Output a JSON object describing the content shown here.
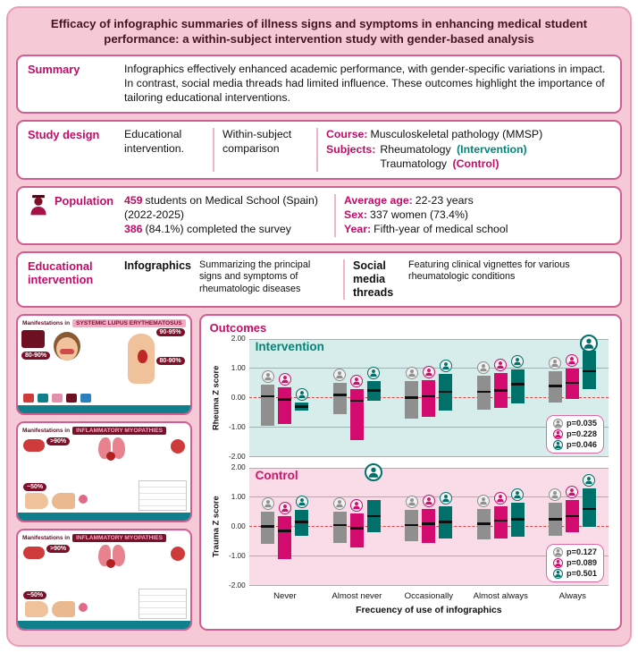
{
  "title": "Efficacy of infographic summaries of illness signs and symptoms in enhancing medical student performance: a within-subject intervention study with gender-based analysis",
  "summary": {
    "label": "Summary",
    "text": "Infographics effectively enhanced academic performance, with gender-specific variations in impact. In contrast, social media threads had limited influence. These outcomes highlight the importance of tailoring educational interventions."
  },
  "study_design": {
    "label": "Study design",
    "col1": "Educational intervention.",
    "col2": "Within-subject comparison",
    "course_label": "Course:",
    "course_value": "Musculoskeletal pathology (MMSP)",
    "subjects_label": "Subjects:",
    "subject1": "Rheumatology",
    "subject1_tag": "(Intervention)",
    "subject2": "Traumatology",
    "subject2_tag": "(Control)"
  },
  "population": {
    "label": "Population",
    "icon": "student-icon",
    "line1_num": "459",
    "line1_rest": "students on Medical School (Spain) (2022-2025)",
    "line2_num": "386",
    "line2_rest": "(84.1%) completed the survey",
    "rows": [
      {
        "label": "Average age:",
        "value": "22-23 years"
      },
      {
        "label": "Sex:",
        "value": "337 women (73.4%)"
      },
      {
        "label": "Year:",
        "value": "Fifth-year of medical school"
      }
    ]
  },
  "education": {
    "label": "Educational intervention",
    "item1_title": "Infographics",
    "item1_desc": "Summarizing the principal signs and symptoms of rheumatologic diseases",
    "item2_title": "Social media threads",
    "item2_desc": "Featuring clinical vignettes for various rheumatologic conditions"
  },
  "thumbnails": [
    {
      "kind": "lupus",
      "intro": "Manifestations in",
      "title": "SYSTEMIC LUPUS ERYTHEMATOSUS",
      "badges": [
        "80-90%",
        "90-95%",
        "80-90%"
      ]
    },
    {
      "kind": "myopathies",
      "intro": "Manifestations in",
      "title": "INFLAMMATORY MYOPATHIES",
      "badges": [
        ">90%",
        "~50%"
      ]
    },
    {
      "kind": "myopathies",
      "intro": "Manifestations in",
      "title": "INFLAMMATORY MYOPATHIES",
      "badges": [
        ">90%",
        "~50%"
      ]
    }
  ],
  "outcomes": {
    "label": "Outcomes",
    "x_title": "Frecuency of use of infographics"
  },
  "colors": {
    "magenta": "#c30b67",
    "teal": "#00857b",
    "gray_series": "#8f8f8f",
    "panel_teal": "#d6edeb",
    "panel_pink": "#f9dce8",
    "zero_line": "#e24444",
    "frame_pink": "#f5c9d6",
    "card_border": "#cf5e92"
  },
  "chart_data": [
    {
      "type": "boxplot",
      "title": "Intervention",
      "title_color": "#00857b",
      "panel_bg": "#d6edeb",
      "ylabel": "Rheuma Z score",
      "ylim": [
        -2.0,
        2.0
      ],
      "yticks": [
        "2.00",
        "1.00",
        "0.00",
        "-1.00",
        "-2.00"
      ],
      "categories": [
        "Never",
        "Almost never",
        "Occasionally",
        "Almost always",
        "Always"
      ],
      "series": [
        {
          "icon": "person-all-icon",
          "color": "#8f8f8f",
          "p_label": "p=0.035",
          "boxes": [
            {
              "q1": -0.95,
              "median": 0.05,
              "q3": 0.45
            },
            {
              "q1": -0.55,
              "median": 0.1,
              "q3": 0.5
            },
            {
              "q1": -0.7,
              "median": 0.0,
              "q3": 0.55
            },
            {
              "q1": -0.4,
              "median": 0.2,
              "q3": 0.75
            },
            {
              "q1": -0.15,
              "median": 0.4,
              "q3": 0.9
            }
          ]
        },
        {
          "icon": "person-female-icon",
          "color": "#d40b6e",
          "p_label": "p=0.228",
          "boxes": [
            {
              "q1": -0.9,
              "median": -0.05,
              "q3": 0.35
            },
            {
              "q1": -1.45,
              "median": -0.1,
              "q3": 0.3
            },
            {
              "q1": -0.65,
              "median": 0.05,
              "q3": 0.6
            },
            {
              "q1": -0.35,
              "median": 0.25,
              "q3": 0.85
            },
            {
              "q1": -0.05,
              "median": 0.5,
              "q3": 1.0
            }
          ]
        },
        {
          "icon": "person-male-icon",
          "color": "#00716a",
          "p_label": "p=0.046",
          "boxes": [
            {
              "q1": -0.45,
              "median": -0.3,
              "q3": -0.15
            },
            {
              "q1": -0.1,
              "median": 0.25,
              "q3": 0.55
            },
            {
              "q1": -0.45,
              "median": 0.2,
              "q3": 0.8
            },
            {
              "q1": -0.2,
              "median": 0.45,
              "q3": 0.95
            },
            {
              "q1": 0.3,
              "median": 0.9,
              "q3": 1.6,
              "hl": true
            }
          ]
        }
      ]
    },
    {
      "type": "boxplot",
      "title": "Control",
      "title_color": "#d1126e",
      "panel_bg": "#f9dce8",
      "ylabel": "Trauma Z score",
      "ylim": [
        -2.0,
        2.0
      ],
      "yticks": [
        "2.00",
        "1.00",
        "0.00",
        "-1.00",
        "-2.00"
      ],
      "categories": [
        "Never",
        "Almost never",
        "Occasionally",
        "Almost always",
        "Always"
      ],
      "xlabel": "Frecuency of use of infographics",
      "series": [
        {
          "icon": "person-all-icon",
          "color": "#8f8f8f",
          "p_label": "p=0.127",
          "boxes": [
            {
              "q1": -0.6,
              "median": 0.0,
              "q3": 0.5
            },
            {
              "q1": -0.55,
              "median": 0.05,
              "q3": 0.5
            },
            {
              "q1": -0.5,
              "median": 0.05,
              "q3": 0.55
            },
            {
              "q1": -0.45,
              "median": 0.1,
              "q3": 0.6
            },
            {
              "q1": -0.3,
              "median": 0.25,
              "q3": 0.8
            }
          ]
        },
        {
          "icon": "person-female-icon",
          "color": "#d40b6e",
          "p_label": "p=0.089",
          "boxes": [
            {
              "q1": -1.1,
              "median": -0.15,
              "q3": 0.35
            },
            {
              "q1": -0.7,
              "median": -0.05,
              "q3": 0.45
            },
            {
              "q1": -0.55,
              "median": 0.1,
              "q3": 0.6
            },
            {
              "q1": -0.4,
              "median": 0.2,
              "q3": 0.7
            },
            {
              "q1": -0.2,
              "median": 0.35,
              "q3": 0.9
            }
          ]
        },
        {
          "icon": "person-male-icon",
          "color": "#00716a",
          "p_label": "p=0.501",
          "boxes": [
            {
              "q1": -0.3,
              "median": 0.15,
              "q3": 0.55
            },
            {
              "q1": -0.2,
              "median": 0.35,
              "q3": 0.9,
              "hl": true
            },
            {
              "q1": -0.4,
              "median": 0.15,
              "q3": 0.7
            },
            {
              "q1": -0.35,
              "median": 0.25,
              "q3": 0.8
            },
            {
              "q1": 0.0,
              "median": 0.6,
              "q3": 1.3
            }
          ]
        }
      ]
    }
  ]
}
